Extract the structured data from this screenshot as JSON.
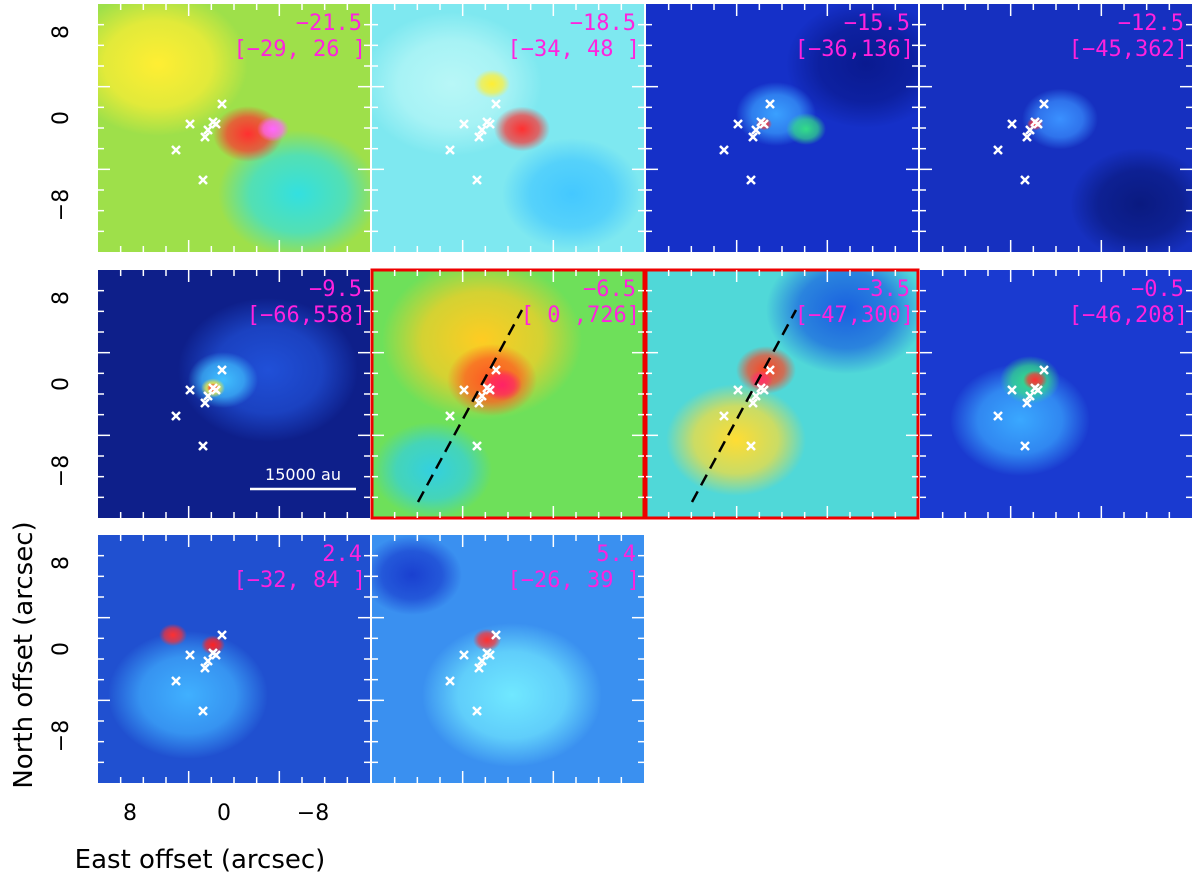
{
  "axes": {
    "x_label": "East offset (arcsec)",
    "y_label": "North offset (arcsec)",
    "x_tick_labels": [
      "8",
      "0",
      "−8"
    ],
    "y_tick_labels": [
      "8",
      "0",
      "−8"
    ]
  },
  "panels": [
    {
      "velocity": "−21.5",
      "range": "[−29, 26 ]"
    },
    {
      "velocity": "−18.5",
      "range": "[−34, 48 ]"
    },
    {
      "velocity": "−15.5",
      "range": "[−36,136]"
    },
    {
      "velocity": "−12.5",
      "range": "[−45,362]"
    },
    {
      "velocity": "−9.5",
      "range": "[−66,558]"
    },
    {
      "velocity": "−6.5",
      "range": "[ 0 ,726]"
    },
    {
      "velocity": "−3.5",
      "range": "[−47,300]"
    },
    {
      "velocity": "−0.5",
      "range": "[−46,208]"
    },
    {
      "velocity": "2.4",
      "range": "[−32, 84 ]"
    },
    {
      "velocity": "5.4",
      "range": "[−26, 39 ]"
    }
  ],
  "scale_bar": "15000 au"
}
